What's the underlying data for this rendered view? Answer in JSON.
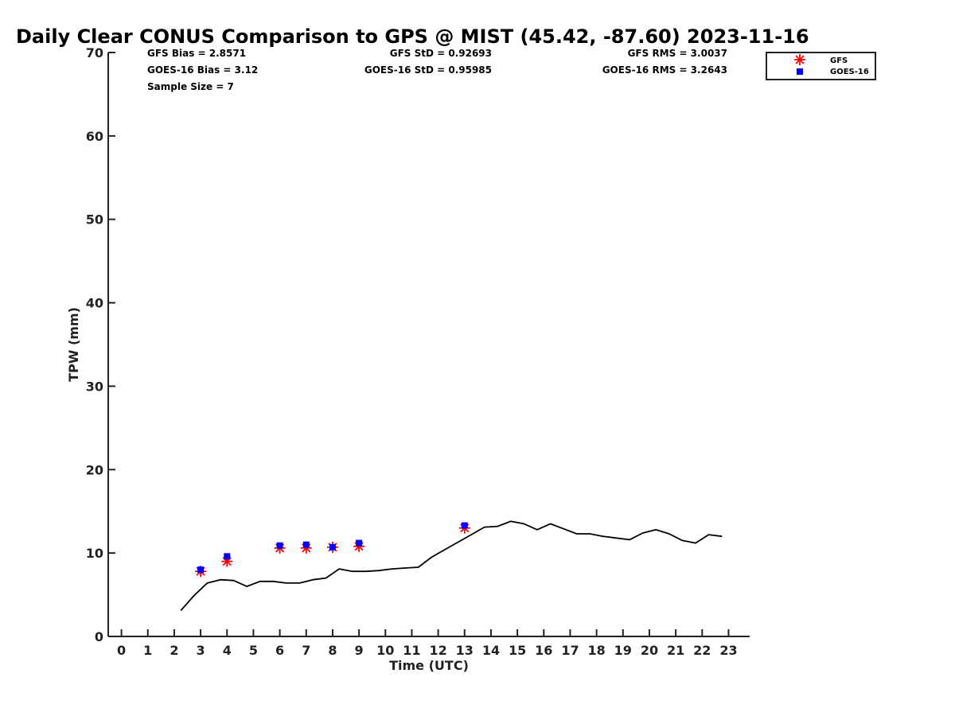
{
  "chart_data": {
    "type": "scatter",
    "title": "Daily Clear CONUS Comparison to GPS @ MIST (45.42, -87.60) 2023-11-16",
    "xlabel": "Time (UTC)",
    "ylabel": "TPW (mm)",
    "xlim": [
      -0.5,
      23.8
    ],
    "ylim": [
      0,
      70
    ],
    "x_ticks": [
      "0",
      "1",
      "2",
      "3",
      "4",
      "5",
      "6",
      "7",
      "8",
      "9",
      "10",
      "11",
      "12",
      "13",
      "14",
      "15",
      "16",
      "17",
      "18",
      "19",
      "20",
      "21",
      "22",
      "23"
    ],
    "y_ticks": [
      "0",
      "10",
      "20",
      "30",
      "40",
      "50",
      "60",
      "70"
    ],
    "grid": false,
    "legend_position": "top-right",
    "stats": {
      "gfs_bias": "GFS Bias = 2.8571",
      "goes_bias": "GOES-16 Bias = 3.12",
      "sample_size": "Sample Size = 7",
      "gfs_std": "GFS StD = 0.92693",
      "goes_std": "GOES-16 StD = 0.95985",
      "gfs_rms": "GFS RMS = 3.0037",
      "goes_rms": "GOES-16 RMS = 3.2643"
    },
    "series": [
      {
        "name": "GFS",
        "marker": "asterisk",
        "color": "#ff0000",
        "x": [
          3,
          4,
          6,
          7,
          8,
          9,
          13
        ],
        "y": [
          7.8,
          9.0,
          10.6,
          10.6,
          10.7,
          10.8,
          13.0
        ]
      },
      {
        "name": "GOES-16",
        "marker": "square",
        "color": "#0000ff",
        "x": [
          3,
          4,
          6,
          7,
          8,
          9,
          13
        ],
        "y": [
          8.0,
          9.6,
          10.9,
          11.0,
          10.7,
          11.2,
          13.3
        ]
      },
      {
        "marker": "line",
        "color": "#000000",
        "x": [
          2.25,
          2.75,
          3.25,
          3.75,
          4.25,
          4.75,
          5.25,
          5.75,
          6.25,
          6.75,
          7.25,
          7.75,
          8.25,
          8.75,
          9.25,
          9.75,
          10.25,
          10.75,
          11.25,
          11.75,
          12.25,
          12.75,
          13.25,
          13.75,
          14.25,
          14.75,
          15.25,
          15.75,
          16.25,
          16.75,
          17.25,
          17.75,
          18.25,
          18.75,
          19.25,
          19.75,
          20.25,
          20.75,
          21.25,
          21.75,
          22.25,
          22.75
        ],
        "y": [
          3.1,
          4.9,
          6.4,
          6.8,
          6.7,
          6.0,
          6.6,
          6.6,
          6.4,
          6.4,
          6.8,
          7.0,
          8.1,
          7.8,
          7.8,
          7.9,
          8.1,
          8.2,
          8.3,
          9.5,
          10.4,
          11.3,
          12.2,
          13.1,
          13.2,
          13.8,
          13.5,
          12.8,
          13.5,
          12.9,
          12.3,
          12.3,
          12.0,
          11.8,
          11.6,
          12.4,
          12.8,
          12.3,
          11.5,
          11.2,
          12.2,
          12.0
        ]
      }
    ]
  }
}
